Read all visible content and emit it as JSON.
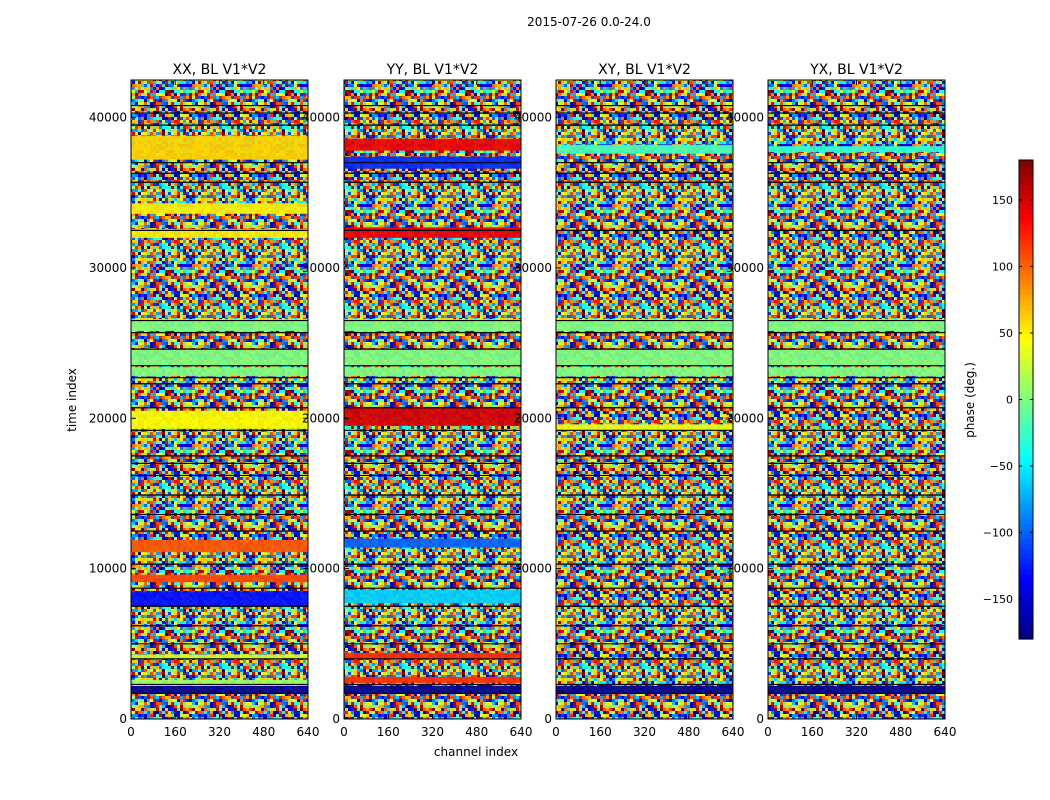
{
  "chart_data": {
    "type": "heatmap",
    "title": "2015-07-26 0.0-24.0",
    "xlabel": "channel index",
    "ylabel": "time index",
    "xlim": [
      0,
      640
    ],
    "ylim": [
      0,
      42500
    ],
    "x_ticks": [
      0,
      160,
      320,
      480,
      640
    ],
    "y_ticks": [
      0,
      10000,
      20000,
      30000,
      40000
    ],
    "colorbar": {
      "label": "phase (deg.)",
      "vmin": -180,
      "vmax": 180,
      "ticks": [
        150,
        100,
        50,
        0,
        -50,
        -100,
        -150
      ],
      "tick_labels": [
        "150",
        "100",
        "50",
        "0",
        "−50",
        "−100",
        "−150"
      ],
      "colormap": "jet",
      "colors": [
        "#00007f",
        "#0000ff",
        "#007fff",
        "#00ffff",
        "#7fff7f",
        "#ffff00",
        "#ff7f00",
        "#ff0000",
        "#7f0000"
      ]
    },
    "panels": [
      {
        "title": "XX, BL V1*V2",
        "bands": [
          {
            "from": 37200,
            "to": 38800,
            "phase": 60
          },
          {
            "from": 33600,
            "to": 34300,
            "phase": 50
          },
          {
            "from": 32000,
            "to": 32600,
            "phase": 50
          },
          {
            "from": 19300,
            "to": 20500,
            "phase": 45
          },
          {
            "from": 11100,
            "to": 11900,
            "phase": 105
          },
          {
            "from": 9100,
            "to": 9600,
            "phase": 110
          },
          {
            "from": 7500,
            "to": 8500,
            "phase": -130
          },
          {
            "from": 4000,
            "to": 4300,
            "phase": 30
          },
          {
            "from": 2200,
            "to": 2600,
            "phase": 10
          }
        ]
      },
      {
        "title": "YY, BL V1*V2",
        "bands": [
          {
            "from": 37800,
            "to": 38600,
            "phase": 140
          },
          {
            "from": 36600,
            "to": 37400,
            "phase": -120
          },
          {
            "from": 32000,
            "to": 32700,
            "phase": 140
          },
          {
            "from": 19500,
            "to": 20700,
            "phase": 150
          },
          {
            "from": 11400,
            "to": 12000,
            "phase": -100
          },
          {
            "from": 7700,
            "to": 8600,
            "phase": -60
          },
          {
            "from": 4000,
            "to": 4400,
            "phase": 120
          },
          {
            "from": 2400,
            "to": 2800,
            "phase": 120
          }
        ]
      },
      {
        "title": "XY, BL V1*V2",
        "bands": [
          {
            "from": 37600,
            "to": 38200,
            "phase": -20
          },
          {
            "from": 19200,
            "to": 19600,
            "phase": 40
          }
        ]
      },
      {
        "title": "YX, BL V1*V2",
        "bands": [
          {
            "from": 37700,
            "to": 38100,
            "phase": -30
          }
        ]
      }
    ],
    "common_bands": [
      {
        "from": 1700,
        "to": 2200,
        "phase": -175
      },
      {
        "from": 22800,
        "to": 23400,
        "phase": 0
      },
      {
        "from": 23500,
        "to": 24600,
        "phase": 0
      },
      {
        "from": 25800,
        "to": 26600,
        "phase": 0
      }
    ],
    "gap_lines": [
      40800,
      40300,
      39500,
      37000,
      36300,
      35700,
      32500,
      26500,
      25700,
      24600,
      23500,
      22700,
      22300,
      20700,
      19200,
      17500,
      17000,
      16200,
      14900,
      13600,
      12500,
      10300,
      8700,
      7500,
      6200,
      5000,
      4000,
      2300,
      1700
    ]
  }
}
